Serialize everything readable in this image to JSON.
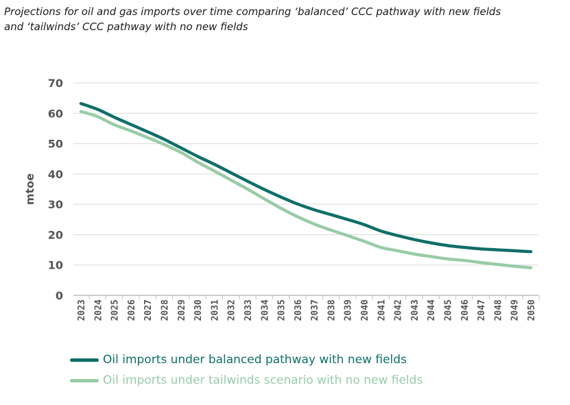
{
  "page": {
    "title_line1": "Projections for oil and gas imports over time comparing ‘balanced’ CCC pathway with new fields",
    "title_line2": "and ‘tailwinds’ CCC pathway with no new fields"
  },
  "chart_data": {
    "type": "line",
    "title": "Projections for oil and gas imports over time comparing ‘balanced’ CCC pathway with new fields and ‘tailwinds’ CCC pathway with no new fields",
    "xlabel": "",
    "ylabel": "mtoe",
    "ylim": [
      0,
      70
    ],
    "yticks": [
      0,
      10,
      20,
      30,
      40,
      50,
      60,
      70
    ],
    "grid": true,
    "legend_position": "bottom",
    "categories": [
      "2023",
      "2024",
      "2025",
      "2026",
      "2027",
      "2028",
      "2029",
      "2030",
      "2031",
      "2032",
      "2033",
      "2034",
      "2035",
      "2036",
      "2037",
      "2038",
      "2039",
      "2040",
      "2041",
      "2042",
      "2043",
      "2044",
      "2045",
      "2046",
      "2047",
      "2048",
      "2049",
      "2050"
    ],
    "series": [
      {
        "name": "Oil imports under balanced pathway with new fields",
        "color": "#0f6e6a",
        "values": [
          63.2,
          61.3,
          58.7,
          56.3,
          53.9,
          51.4,
          48.6,
          45.8,
          43.2,
          40.4,
          37.6,
          34.9,
          32.4,
          30.1,
          28.2,
          26.6,
          25.0,
          23.3,
          21.2,
          19.7,
          18.4,
          17.3,
          16.4,
          15.8,
          15.3,
          15.0,
          14.7,
          14.4
        ]
      },
      {
        "name": "Oil imports under tailwinds scenario with no new fields",
        "color": "#98cca6",
        "values": [
          60.6,
          58.9,
          56.2,
          54.2,
          52.0,
          49.7,
          47.1,
          43.9,
          41.0,
          38.0,
          35.0,
          31.8,
          28.7,
          25.9,
          23.5,
          21.5,
          19.7,
          17.8,
          15.8,
          14.7,
          13.6,
          12.8,
          12.0,
          11.5,
          10.8,
          10.2,
          9.6,
          9.1
        ]
      }
    ]
  }
}
